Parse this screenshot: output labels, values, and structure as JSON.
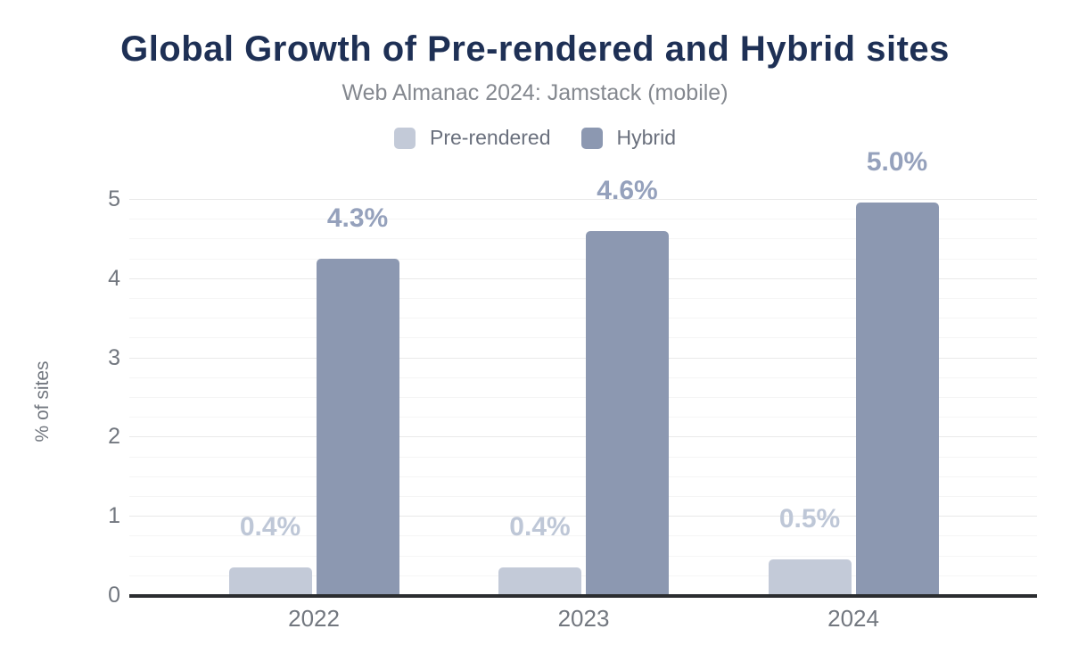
{
  "title": "Global Growth of Pre-rendered and Hybrid sites",
  "subtitle": "Web Almanac 2024: Jamstack (mobile)",
  "chart_data": {
    "type": "bar",
    "categories": [
      "2022",
      "2023",
      "2024"
    ],
    "series": [
      {
        "name": "Pre-rendered",
        "color": "#c3cad8",
        "label_color": "#bec7d7",
        "values": [
          0.35,
          0.35,
          0.45
        ],
        "labels": [
          "0.4%",
          "0.4%",
          "0.5%"
        ]
      },
      {
        "name": "Hybrid",
        "color": "#8c98b1",
        "label_color": "#95a1bc",
        "values": [
          4.25,
          4.6,
          4.95
        ],
        "labels": [
          "4.3%",
          "4.6%",
          "5.0%"
        ]
      }
    ],
    "xlabel": "",
    "ylabel": "% of sites",
    "ylim": [
      0,
      5
    ],
    "yticks": [
      0,
      1,
      2,
      3,
      4,
      5
    ],
    "minor_grid_step": 0.25,
    "grid": true,
    "legend_position": "top-center",
    "colors": {
      "title": "#1e3055",
      "subtitle": "#84888f",
      "legend_text": "#6a707d",
      "tick_text": "#72777f",
      "axis_line": "#2b2d30",
      "major_grid": "#e9e9e9",
      "minor_grid": "#f5f5f5",
      "background": "#ffffff"
    }
  }
}
